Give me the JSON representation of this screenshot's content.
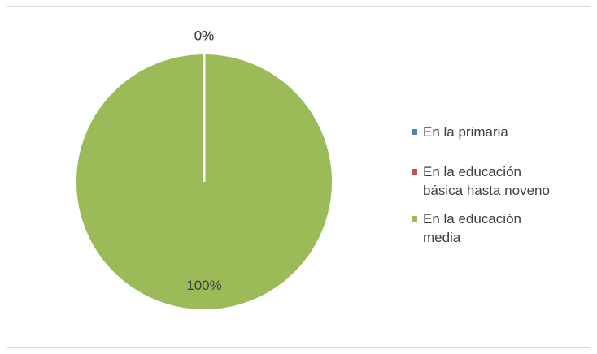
{
  "chart_data": {
    "type": "pie",
    "categories": [
      "En la primaria",
      "En la educación básica hasta noveno",
      "En la educación media"
    ],
    "values": [
      0,
      0,
      100
    ],
    "value_labels": [
      "0%",
      "0%",
      "100%"
    ],
    "colors": [
      "#4f81bd",
      "#c0504d",
      "#9bbb59"
    ],
    "legend": "right"
  }
}
